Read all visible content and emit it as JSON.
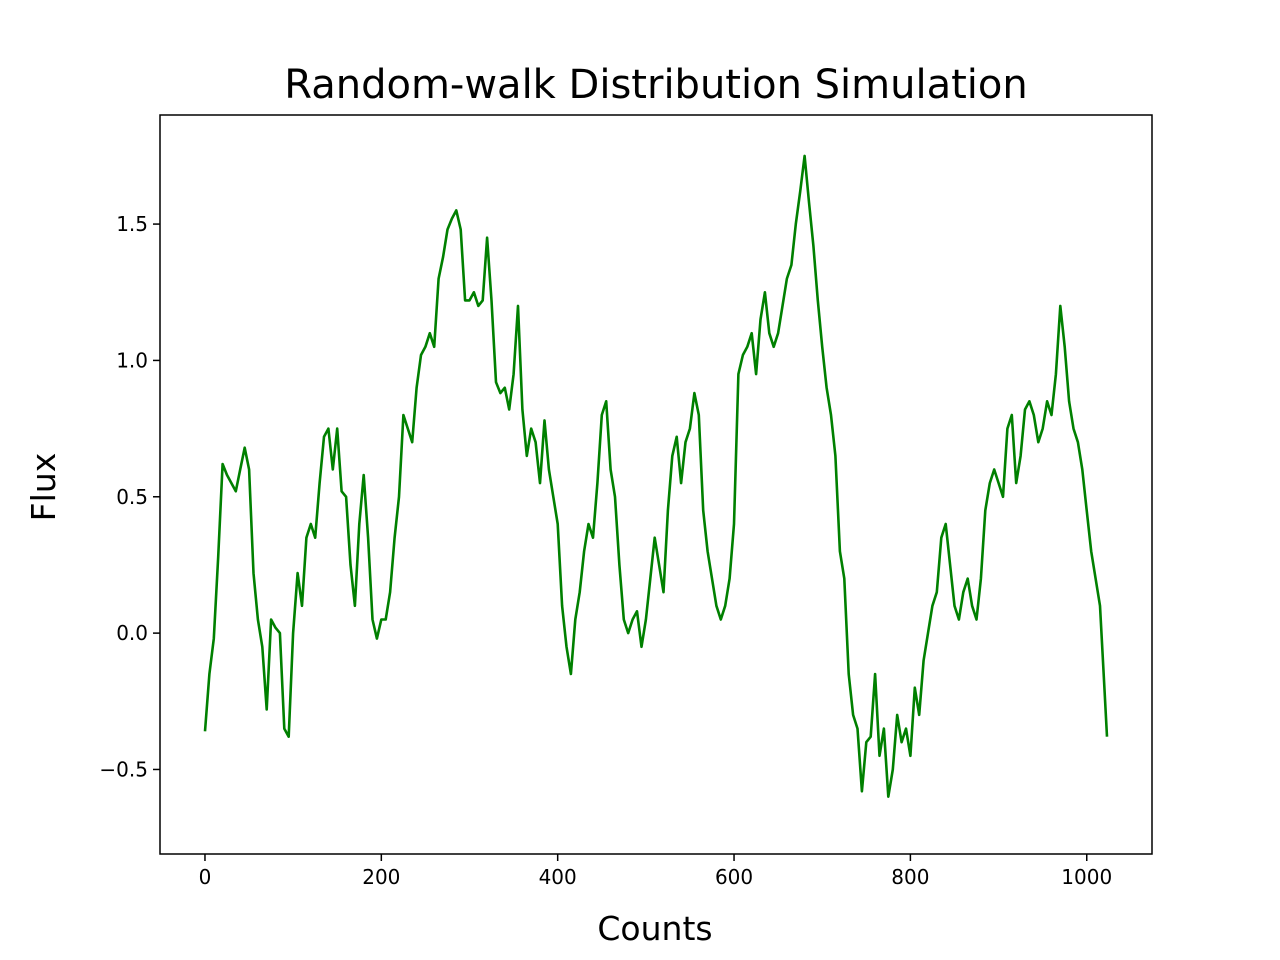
{
  "chart_data": {
    "type": "line",
    "title": "Random-walk Distribution Simulation",
    "xlabel": "Counts",
    "ylabel": "Flux",
    "xlim": [
      -51,
      1074
    ],
    "ylim": [
      -0.81,
      1.9
    ],
    "x_ticks": [
      0,
      200,
      400,
      600,
      800,
      1000
    ],
    "x_tick_labels": [
      "0",
      "200",
      "400",
      "600",
      "800",
      "1000"
    ],
    "y_ticks": [
      -0.5,
      0.0,
      0.5,
      1.0,
      1.5
    ],
    "y_tick_labels": [
      "−0.5",
      "0.0",
      "0.5",
      "1.0",
      "1.5"
    ],
    "grid": false,
    "legend": "none",
    "series": [
      {
        "color": "#008000",
        "x": [
          0,
          5,
          10,
          15,
          20,
          25,
          30,
          35,
          40,
          45,
          50,
          55,
          60,
          65,
          70,
          75,
          80,
          85,
          90,
          95,
          100,
          105,
          110,
          115,
          120,
          125,
          130,
          135,
          140,
          145,
          150,
          155,
          160,
          165,
          170,
          175,
          180,
          185,
          190,
          195,
          200,
          205,
          210,
          215,
          220,
          225,
          230,
          235,
          240,
          245,
          250,
          255,
          260,
          265,
          270,
          275,
          280,
          285,
          290,
          295,
          300,
          305,
          310,
          315,
          320,
          325,
          330,
          335,
          340,
          345,
          350,
          355,
          360,
          365,
          370,
          375,
          380,
          385,
          390,
          395,
          400,
          405,
          410,
          415,
          420,
          425,
          430,
          435,
          440,
          445,
          450,
          455,
          460,
          465,
          470,
          475,
          480,
          485,
          490,
          495,
          500,
          505,
          510,
          515,
          520,
          525,
          530,
          535,
          540,
          545,
          550,
          555,
          560,
          565,
          570,
          575,
          580,
          585,
          590,
          595,
          600,
          605,
          610,
          615,
          620,
          625,
          630,
          635,
          640,
          645,
          650,
          655,
          660,
          665,
          670,
          675,
          680,
          685,
          690,
          695,
          700,
          705,
          710,
          715,
          720,
          725,
          730,
          735,
          740,
          745,
          750,
          755,
          760,
          765,
          770,
          775,
          780,
          785,
          790,
          795,
          800,
          805,
          810,
          815,
          820,
          825,
          830,
          835,
          840,
          845,
          850,
          855,
          860,
          865,
          870,
          875,
          880,
          885,
          890,
          895,
          900,
          905,
          910,
          915,
          920,
          925,
          930,
          935,
          940,
          945,
          950,
          955,
          960,
          965,
          970,
          975,
          980,
          985,
          990,
          995,
          1000,
          1005,
          1010,
          1015,
          1020,
          1023
        ],
        "y": [
          -0.36,
          -0.15,
          -0.02,
          0.28,
          0.62,
          0.58,
          0.55,
          0.52,
          0.6,
          0.68,
          0.6,
          0.22,
          0.05,
          -0.05,
          -0.28,
          0.05,
          0.02,
          0.0,
          -0.35,
          -0.38,
          0.0,
          0.22,
          0.1,
          0.35,
          0.4,
          0.35,
          0.55,
          0.72,
          0.75,
          0.6,
          0.75,
          0.52,
          0.5,
          0.25,
          0.1,
          0.4,
          0.58,
          0.35,
          0.05,
          -0.02,
          0.05,
          0.05,
          0.15,
          0.35,
          0.5,
          0.8,
          0.75,
          0.7,
          0.9,
          1.02,
          1.05,
          1.1,
          1.05,
          1.3,
          1.38,
          1.48,
          1.52,
          1.55,
          1.48,
          1.22,
          1.22,
          1.25,
          1.2,
          1.22,
          1.45,
          1.22,
          0.92,
          0.88,
          0.9,
          0.82,
          0.95,
          1.2,
          0.82,
          0.65,
          0.75,
          0.7,
          0.55,
          0.78,
          0.6,
          0.5,
          0.4,
          0.1,
          -0.05,
          -0.15,
          0.05,
          0.15,
          0.3,
          0.4,
          0.35,
          0.55,
          0.8,
          0.85,
          0.6,
          0.5,
          0.25,
          0.05,
          0.0,
          0.05,
          0.08,
          -0.05,
          0.05,
          0.2,
          0.35,
          0.25,
          0.15,
          0.45,
          0.65,
          0.72,
          0.55,
          0.7,
          0.75,
          0.88,
          0.8,
          0.45,
          0.3,
          0.2,
          0.1,
          0.05,
          0.1,
          0.2,
          0.4,
          0.95,
          1.02,
          1.05,
          1.1,
          0.95,
          1.15,
          1.25,
          1.1,
          1.05,
          1.1,
          1.2,
          1.3,
          1.35,
          1.5,
          1.62,
          1.75,
          1.58,
          1.42,
          1.22,
          1.05,
          0.9,
          0.8,
          0.65,
          0.3,
          0.2,
          -0.15,
          -0.3,
          -0.35,
          -0.58,
          -0.4,
          -0.38,
          -0.15,
          -0.45,
          -0.35,
          -0.6,
          -0.5,
          -0.3,
          -0.4,
          -0.35,
          -0.45,
          -0.2,
          -0.3,
          -0.1,
          0.0,
          0.1,
          0.15,
          0.35,
          0.4,
          0.25,
          0.1,
          0.05,
          0.15,
          0.2,
          0.1,
          0.05,
          0.2,
          0.45,
          0.55,
          0.6,
          0.55,
          0.5,
          0.75,
          0.8,
          0.55,
          0.65,
          0.82,
          0.85,
          0.8,
          0.7,
          0.75,
          0.85,
          0.8,
          0.95,
          1.2,
          1.05,
          0.85,
          0.75,
          0.7,
          0.6,
          0.45,
          0.3,
          0.2,
          0.1,
          -0.2,
          -0.38
        ]
      }
    ]
  }
}
